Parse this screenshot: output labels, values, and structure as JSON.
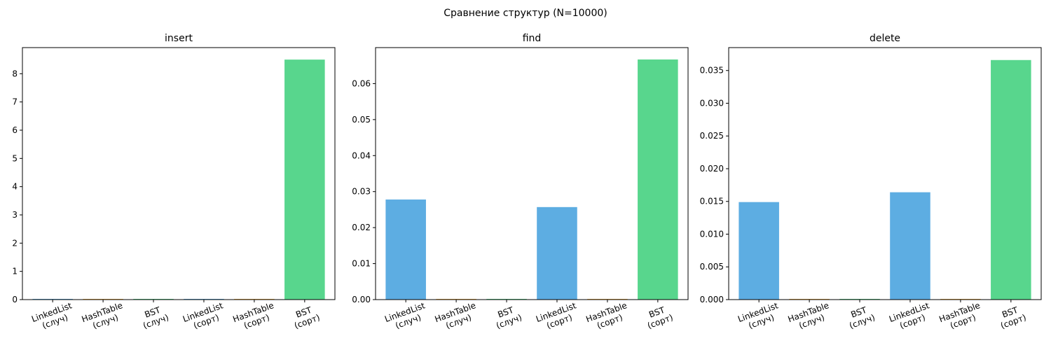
{
  "figure": {
    "suptitle": "Сравнение структур (N=10000)"
  },
  "colors": {
    "linkedlist": "#5dade2",
    "hashtable": "#f5b041",
    "bst": "#58d68d"
  },
  "chart_data": [
    {
      "type": "bar",
      "title": "insert",
      "categories": [
        [
          "LinkedList",
          "(случ)"
        ],
        [
          "HashTable",
          "(случ)"
        ],
        [
          "BST",
          "(случ)"
        ],
        [
          "LinkedList",
          "(сорт)"
        ],
        [
          "HashTable",
          "(сорт)"
        ],
        [
          "BST",
          "(сорт)"
        ]
      ],
      "values": [
        0.003,
        0.012,
        0.009,
        0.003,
        0.006,
        8.5
      ],
      "bar_colors": [
        "#5dade2",
        "#f5b041",
        "#58d68d",
        "#5dade2",
        "#f5b041",
        "#58d68d"
      ],
      "ylim": [
        0,
        8.925
      ],
      "yticks": [
        0,
        1,
        2,
        3,
        4,
        5,
        6,
        7,
        8
      ],
      "ytick_labels": [
        "0",
        "1",
        "2",
        "3",
        "4",
        "5",
        "6",
        "7",
        "8"
      ],
      "grid": false
    },
    {
      "type": "bar",
      "title": "find",
      "categories": [
        [
          "LinkedList",
          "(случ)"
        ],
        [
          "HashTable",
          "(случ)"
        ],
        [
          "BST",
          "(случ)"
        ],
        [
          "LinkedList",
          "(сорт)"
        ],
        [
          "HashTable",
          "(сорт)"
        ],
        [
          "BST",
          "(сорт)"
        ]
      ],
      "values": [
        0.0278,
        0.0001,
        0.0001,
        0.0257,
        0.0001,
        0.0667
      ],
      "bar_colors": [
        "#5dade2",
        "#f5b041",
        "#58d68d",
        "#5dade2",
        "#f5b041",
        "#58d68d"
      ],
      "ylim": [
        0,
        0.07
      ],
      "yticks": [
        0,
        0.01,
        0.02,
        0.03,
        0.04,
        0.05,
        0.06
      ],
      "ytick_labels": [
        "0.00",
        "0.01",
        "0.02",
        "0.03",
        "0.04",
        "0.05",
        "0.06"
      ],
      "grid": false
    },
    {
      "type": "bar",
      "title": "delete",
      "categories": [
        [
          "LinkedList",
          "(случ)"
        ],
        [
          "HashTable",
          "(случ)"
        ],
        [
          "BST",
          "(случ)"
        ],
        [
          "LinkedList",
          "(сорт)"
        ],
        [
          "HashTable",
          "(сорт)"
        ],
        [
          "BST",
          "(сорт)"
        ]
      ],
      "values": [
        0.0149,
        5e-05,
        5e-05,
        0.0164,
        5e-05,
        0.0366
      ],
      "bar_colors": [
        "#5dade2",
        "#f5b041",
        "#58d68d",
        "#5dade2",
        "#f5b041",
        "#58d68d"
      ],
      "ylim": [
        0,
        0.0385
      ],
      "yticks": [
        0,
        0.005,
        0.01,
        0.015,
        0.02,
        0.025,
        0.03,
        0.035
      ],
      "ytick_labels": [
        "0.000",
        "0.005",
        "0.010",
        "0.015",
        "0.020",
        "0.025",
        "0.030",
        "0.035"
      ],
      "grid": false
    }
  ]
}
